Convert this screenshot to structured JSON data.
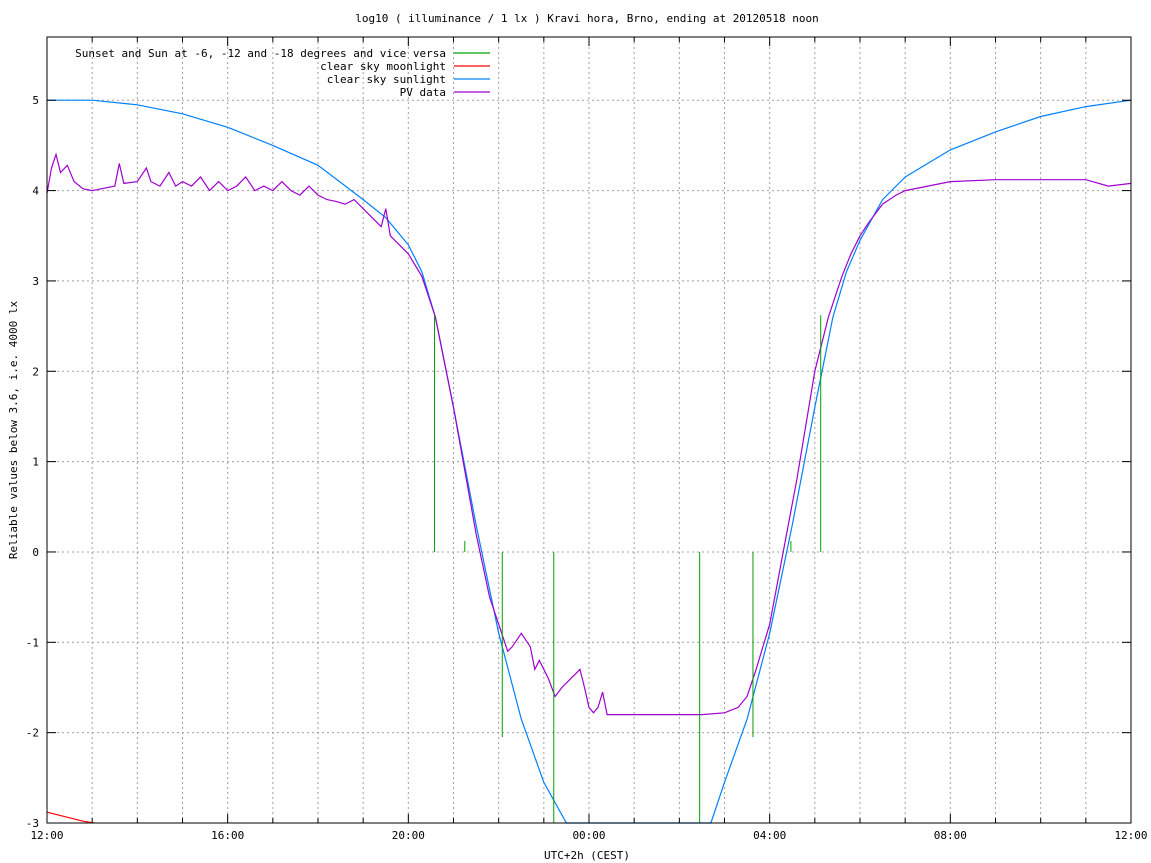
{
  "chart_data": {
    "type": "line",
    "title": "log10 ( illuminance / 1 lx ) Kravi hora, Brno, ending at 20120518 noon",
    "xlabel": "UTC+2h (CEST)",
    "ylabel": "Reliable values below 3.6, i.e. 4000 lx",
    "x_unit": "hours after 12:00",
    "xlim": [
      0,
      24
    ],
    "ylim": [
      -3,
      5.7
    ],
    "x_tick_labels": [
      {
        "x": 0,
        "label": "12:00"
      },
      {
        "x": 4,
        "label": "16:00"
      },
      {
        "x": 8,
        "label": "20:00"
      },
      {
        "x": 12,
        "label": "00:00"
      },
      {
        "x": 16,
        "label": "04:00"
      },
      {
        "x": 20,
        "label": "08:00"
      },
      {
        "x": 24,
        "label": "12:00"
      }
    ],
    "y_ticks": [
      -3,
      -2,
      -1,
      0,
      1,
      2,
      3,
      4,
      5
    ],
    "grid": true,
    "legend_position": "top-left",
    "series": [
      {
        "name": "Sunset and Sun at -6, -12 and -18 degrees and vice versa",
        "color": "#00a000",
        "style": "impulses",
        "points": [
          [
            8.58,
            2.62
          ],
          [
            9.25,
            0.12
          ],
          [
            10.08,
            -2.05
          ],
          [
            11.22,
            -3.0
          ],
          [
            14.45,
            -3.0
          ],
          [
            15.63,
            -2.05
          ],
          [
            16.47,
            0.12
          ],
          [
            17.13,
            2.62
          ]
        ]
      },
      {
        "name": "clear sky moonlight",
        "color": "#ff0000",
        "points": [
          [
            0,
            -2.88
          ],
          [
            0.4,
            -2.93
          ],
          [
            0.8,
            -2.98
          ],
          [
            1.05,
            -3.0
          ]
        ]
      },
      {
        "name": "clear sky sunlight",
        "color": "#0080ff",
        "points": [
          [
            0,
            5.0
          ],
          [
            1,
            5.0
          ],
          [
            2,
            4.95
          ],
          [
            3,
            4.85
          ],
          [
            4,
            4.7
          ],
          [
            5,
            4.5
          ],
          [
            6,
            4.28
          ],
          [
            7,
            3.9
          ],
          [
            7.5,
            3.7
          ],
          [
            8,
            3.4
          ],
          [
            8.3,
            3.1
          ],
          [
            8.6,
            2.6
          ],
          [
            9,
            1.6
          ],
          [
            9.5,
            0.3
          ],
          [
            10,
            -0.9
          ],
          [
            10.5,
            -1.85
          ],
          [
            11,
            -2.55
          ],
          [
            11.5,
            -3.0
          ],
          [
            14.7,
            -3.0
          ],
          [
            15,
            -2.55
          ],
          [
            15.5,
            -1.85
          ],
          [
            16,
            -0.9
          ],
          [
            16.5,
            0.3
          ],
          [
            17,
            1.6
          ],
          [
            17.4,
            2.6
          ],
          [
            17.7,
            3.1
          ],
          [
            18,
            3.45
          ],
          [
            18.5,
            3.9
          ],
          [
            19,
            4.15
          ],
          [
            20,
            4.45
          ],
          [
            21,
            4.65
          ],
          [
            22,
            4.82
          ],
          [
            23,
            4.93
          ],
          [
            24,
            5.0
          ]
        ]
      },
      {
        "name": "PV data",
        "color": "#a000d0",
        "points": [
          [
            0,
            3.97
          ],
          [
            0.1,
            4.25
          ],
          [
            0.2,
            4.4
          ],
          [
            0.3,
            4.2
          ],
          [
            0.45,
            4.28
          ],
          [
            0.6,
            4.1
          ],
          [
            0.8,
            4.02
          ],
          [
            1,
            4.0
          ],
          [
            1.2,
            4.02
          ],
          [
            1.5,
            4.05
          ],
          [
            1.6,
            4.3
          ],
          [
            1.7,
            4.08
          ],
          [
            2,
            4.1
          ],
          [
            2.2,
            4.25
          ],
          [
            2.3,
            4.1
          ],
          [
            2.5,
            4.05
          ],
          [
            2.7,
            4.2
          ],
          [
            2.85,
            4.05
          ],
          [
            3,
            4.1
          ],
          [
            3.2,
            4.05
          ],
          [
            3.4,
            4.15
          ],
          [
            3.6,
            4.0
          ],
          [
            3.8,
            4.1
          ],
          [
            4,
            4.0
          ],
          [
            4.2,
            4.05
          ],
          [
            4.4,
            4.15
          ],
          [
            4.6,
            4.0
          ],
          [
            4.8,
            4.05
          ],
          [
            5,
            4.0
          ],
          [
            5.2,
            4.1
          ],
          [
            5.4,
            4.0
          ],
          [
            5.6,
            3.95
          ],
          [
            5.8,
            4.05
          ],
          [
            6,
            3.95
          ],
          [
            6.2,
            3.9
          ],
          [
            6.4,
            3.88
          ],
          [
            6.6,
            3.85
          ],
          [
            6.8,
            3.9
          ],
          [
            7,
            3.8
          ],
          [
            7.2,
            3.7
          ],
          [
            7.4,
            3.6
          ],
          [
            7.5,
            3.8
          ],
          [
            7.6,
            3.5
          ],
          [
            7.8,
            3.4
          ],
          [
            8,
            3.3
          ],
          [
            8.3,
            3.05
          ],
          [
            8.6,
            2.6
          ],
          [
            9,
            1.6
          ],
          [
            9.5,
            0.2
          ],
          [
            9.8,
            -0.5
          ],
          [
            10.1,
            -0.95
          ],
          [
            10.2,
            -1.1
          ],
          [
            10.3,
            -1.05
          ],
          [
            10.5,
            -0.9
          ],
          [
            10.7,
            -1.05
          ],
          [
            10.8,
            -1.3
          ],
          [
            10.9,
            -1.2
          ],
          [
            11.1,
            -1.4
          ],
          [
            11.25,
            -1.6
          ],
          [
            11.4,
            -1.5
          ],
          [
            11.6,
            -1.4
          ],
          [
            11.8,
            -1.3
          ],
          [
            11.9,
            -1.5
          ],
          [
            12,
            -1.72
          ],
          [
            12.1,
            -1.78
          ],
          [
            12.2,
            -1.72
          ],
          [
            12.3,
            -1.55
          ],
          [
            12.4,
            -1.8
          ],
          [
            12.6,
            -1.8
          ],
          [
            14.5,
            -1.8
          ],
          [
            15,
            -1.78
          ],
          [
            15.3,
            -1.72
          ],
          [
            15.5,
            -1.6
          ],
          [
            15.7,
            -1.3
          ],
          [
            16,
            -0.8
          ],
          [
            16.3,
            0.0
          ],
          [
            16.6,
            0.8
          ],
          [
            17,
            2.0
          ],
          [
            17.3,
            2.6
          ],
          [
            17.6,
            3.05
          ],
          [
            17.8,
            3.3
          ],
          [
            18,
            3.5
          ],
          [
            18.2,
            3.65
          ],
          [
            18.5,
            3.85
          ],
          [
            18.8,
            3.95
          ],
          [
            19,
            4.0
          ],
          [
            19.5,
            4.05
          ],
          [
            20,
            4.1
          ],
          [
            21,
            4.12
          ],
          [
            22,
            4.12
          ],
          [
            23,
            4.12
          ],
          [
            23.5,
            4.05
          ],
          [
            24,
            4.08
          ]
        ]
      }
    ]
  }
}
